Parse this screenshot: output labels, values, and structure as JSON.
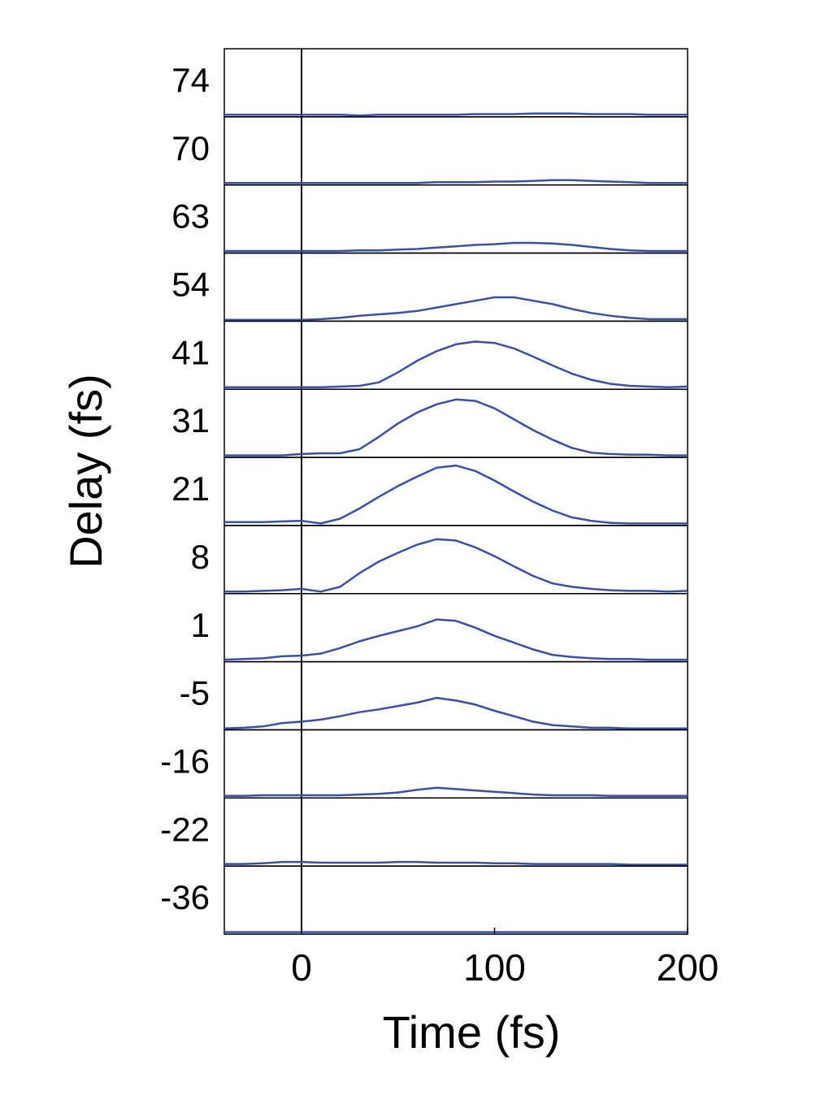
{
  "chart_data": {
    "type": "ridgeline",
    "xlabel": "Time (fs)",
    "ylabel": "Delay (fs)",
    "xlim": [
      -40,
      200
    ],
    "xticks": [
      0,
      100,
      200
    ],
    "vline": 0,
    "ylim": [
      0,
      1
    ],
    "x": [
      -40,
      -30,
      -20,
      -10,
      0,
      10,
      20,
      30,
      40,
      50,
      60,
      70,
      80,
      90,
      100,
      110,
      120,
      130,
      140,
      150,
      160,
      170,
      180,
      190,
      200
    ],
    "series": [
      {
        "name": "74",
        "color": "#3a4fa8",
        "values": [
          0.03,
          0.03,
          0.03,
          0.03,
          0.03,
          0.03,
          0.03,
          0.02,
          0.03,
          0.03,
          0.03,
          0.03,
          0.03,
          0.04,
          0.04,
          0.04,
          0.05,
          0.05,
          0.05,
          0.04,
          0.04,
          0.04,
          0.03,
          0.03,
          0.03
        ]
      },
      {
        "name": "70",
        "color": "#3a4fa8",
        "values": [
          0.03,
          0.03,
          0.03,
          0.03,
          0.03,
          0.03,
          0.03,
          0.03,
          0.03,
          0.03,
          0.03,
          0.04,
          0.04,
          0.04,
          0.05,
          0.05,
          0.06,
          0.07,
          0.07,
          0.06,
          0.05,
          0.04,
          0.03,
          0.03,
          0.03
        ]
      },
      {
        "name": "63",
        "color": "#3a4fa8",
        "values": [
          0.03,
          0.03,
          0.03,
          0.03,
          0.03,
          0.03,
          0.03,
          0.04,
          0.04,
          0.05,
          0.06,
          0.08,
          0.1,
          0.12,
          0.13,
          0.15,
          0.15,
          0.14,
          0.12,
          0.09,
          0.06,
          0.04,
          0.03,
          0.03,
          0.03
        ]
      },
      {
        "name": "54",
        "color": "#3a4fa8",
        "values": [
          0.02,
          0.02,
          0.02,
          0.02,
          0.02,
          0.03,
          0.05,
          0.08,
          0.1,
          0.12,
          0.15,
          0.2,
          0.25,
          0.3,
          0.35,
          0.35,
          0.3,
          0.25,
          0.18,
          0.12,
          0.08,
          0.05,
          0.03,
          0.03,
          0.03
        ]
      },
      {
        "name": "41",
        "color": "#3a4fa8",
        "values": [
          0.03,
          0.03,
          0.03,
          0.03,
          0.03,
          0.03,
          0.04,
          0.05,
          0.1,
          0.25,
          0.42,
          0.56,
          0.66,
          0.7,
          0.68,
          0.6,
          0.48,
          0.35,
          0.23,
          0.14,
          0.08,
          0.05,
          0.04,
          0.03,
          0.04
        ]
      },
      {
        "name": "31",
        "color": "#3a4fa8",
        "values": [
          0.03,
          0.03,
          0.03,
          0.03,
          0.05,
          0.06,
          0.06,
          0.12,
          0.3,
          0.5,
          0.66,
          0.78,
          0.85,
          0.83,
          0.72,
          0.56,
          0.4,
          0.26,
          0.14,
          0.07,
          0.05,
          0.04,
          0.04,
          0.03,
          0.03
        ]
      },
      {
        "name": "21",
        "color": "#3a4fa8",
        "values": [
          0.05,
          0.05,
          0.05,
          0.06,
          0.07,
          0.03,
          0.1,
          0.25,
          0.42,
          0.58,
          0.72,
          0.85,
          0.88,
          0.8,
          0.66,
          0.5,
          0.35,
          0.22,
          0.12,
          0.07,
          0.04,
          0.03,
          0.03,
          0.03,
          0.03
        ]
      },
      {
        "name": "8",
        "color": "#3a4fa8",
        "values": [
          0.03,
          0.03,
          0.04,
          0.05,
          0.07,
          0.03,
          0.1,
          0.3,
          0.47,
          0.6,
          0.72,
          0.8,
          0.78,
          0.68,
          0.55,
          0.4,
          0.26,
          0.15,
          0.1,
          0.07,
          0.05,
          0.04,
          0.04,
          0.03,
          0.04
        ]
      },
      {
        "name": "1",
        "color": "#3a4fa8",
        "values": [
          0.03,
          0.04,
          0.05,
          0.08,
          0.09,
          0.12,
          0.2,
          0.3,
          0.38,
          0.45,
          0.52,
          0.62,
          0.6,
          0.5,
          0.38,
          0.28,
          0.18,
          0.1,
          0.07,
          0.05,
          0.04,
          0.04,
          0.03,
          0.03,
          0.03
        ]
      },
      {
        "name": "-5",
        "color": "#3a4fa8",
        "values": [
          0.02,
          0.03,
          0.05,
          0.1,
          0.12,
          0.15,
          0.2,
          0.26,
          0.3,
          0.35,
          0.4,
          0.47,
          0.43,
          0.37,
          0.28,
          0.2,
          0.12,
          0.07,
          0.05,
          0.03,
          0.03,
          0.02,
          0.02,
          0.02,
          0.02
        ]
      },
      {
        "name": "-16",
        "color": "#3a4fa8",
        "values": [
          0.03,
          0.03,
          0.04,
          0.04,
          0.04,
          0.04,
          0.04,
          0.05,
          0.06,
          0.08,
          0.12,
          0.15,
          0.13,
          0.11,
          0.09,
          0.07,
          0.05,
          0.04,
          0.04,
          0.04,
          0.03,
          0.03,
          0.03,
          0.03,
          0.03
        ]
      },
      {
        "name": "-22",
        "color": "#3a4fa8",
        "values": [
          0.03,
          0.03,
          0.04,
          0.06,
          0.06,
          0.05,
          0.05,
          0.05,
          0.05,
          0.06,
          0.06,
          0.05,
          0.05,
          0.05,
          0.04,
          0.04,
          0.03,
          0.03,
          0.03,
          0.03,
          0.03,
          0.02,
          0.02,
          0.02,
          0.02
        ]
      },
      {
        "name": "-36",
        "color": "#3a4fa8",
        "values": [
          0.03,
          0.03,
          0.03,
          0.03,
          0.03,
          0.03,
          0.03,
          0.03,
          0.03,
          0.03,
          0.03,
          0.03,
          0.03,
          0.03,
          0.03,
          0.03,
          0.03,
          0.03,
          0.03,
          0.03,
          0.03,
          0.03,
          0.03,
          0.03,
          0.03
        ]
      }
    ]
  }
}
